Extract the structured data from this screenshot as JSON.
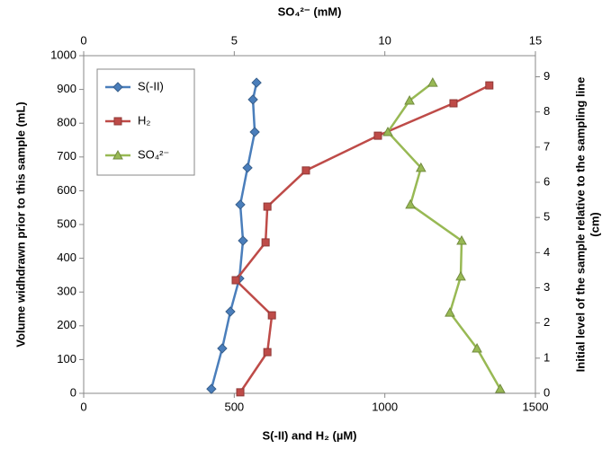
{
  "chart_data": {
    "type": "line",
    "xlabel": "S(-II) and H₂ (µM)",
    "x2label": "SO₄²⁻ (mM)",
    "ylabel": "Volume widhdrawn prior to this  sample (mL)",
    "y2label": [
      "Initial level of the sample relative to the sampling line",
      "(cm)"
    ],
    "xlim": [
      0,
      1500
    ],
    "xticks": [
      0,
      500,
      1000,
      1500
    ],
    "x2lim": [
      0,
      15
    ],
    "x2ticks": [
      0,
      5,
      10,
      15
    ],
    "ylim": [
      0,
      1000
    ],
    "yticks": [
      0,
      100,
      200,
      300,
      400,
      500,
      600,
      700,
      800,
      900,
      1000
    ],
    "y2lim": [
      0,
      9.6
    ],
    "y2ticks": [
      0,
      1,
      2,
      3,
      4,
      5,
      6,
      7,
      8,
      9
    ],
    "legend": "upper left",
    "series": [
      {
        "name": "S(-II)",
        "color": "#4a7ebb",
        "marker": "diamond",
        "axis": "x",
        "x": [
          424,
          460,
          487,
          517,
          529,
          520,
          544,
          568,
          562,
          574
        ],
        "y": [
          13,
          133,
          242,
          340,
          452,
          559,
          668,
          774,
          870,
          920
        ]
      },
      {
        "name": "H₂",
        "color": "#be4b48",
        "marker": "square",
        "axis": "x",
        "x": [
          520,
          610,
          625,
          505,
          604,
          610,
          738,
          977,
          1228,
          1347
        ],
        "y": [
          3,
          122,
          231,
          335,
          447,
          553,
          660,
          763,
          859,
          912
        ]
      },
      {
        "name": "SO₄²⁻",
        "color": "#98b954",
        "marker": "triangle",
        "axis": "x2",
        "x": [
          13.83,
          13.06,
          12.16,
          12.52,
          12.55,
          10.85,
          11.2,
          10.1,
          10.82,
          11.59
        ],
        "y": [
          13,
          133,
          239,
          346,
          452,
          559,
          668,
          774,
          867,
          920
        ]
      }
    ]
  }
}
